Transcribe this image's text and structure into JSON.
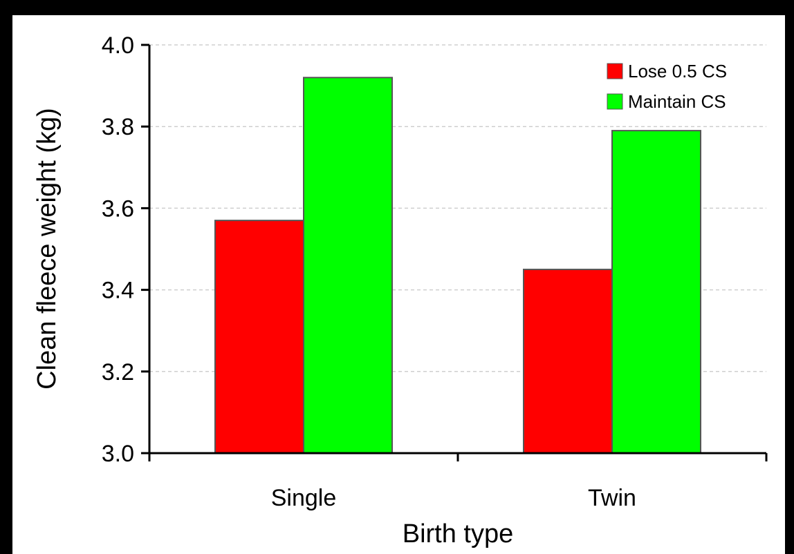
{
  "chart_data": {
    "type": "bar",
    "categories": [
      "Single",
      "Twin"
    ],
    "series": [
      {
        "name": "Lose 0.5 CS",
        "values": [
          3.57,
          3.45
        ],
        "color": "#ff0000"
      },
      {
        "name": "Maintain CS",
        "values": [
          3.92,
          3.79
        ],
        "color": "#00ff00"
      }
    ],
    "xlabel": "Birth type",
    "ylabel": "Clean fleece weight (kg)",
    "ylim": [
      3.0,
      4.0
    ],
    "yticks": [
      "3.0",
      "3.2",
      "3.4",
      "3.6",
      "3.8",
      "4.0"
    ],
    "grid": true,
    "legend_position": "top-right"
  }
}
